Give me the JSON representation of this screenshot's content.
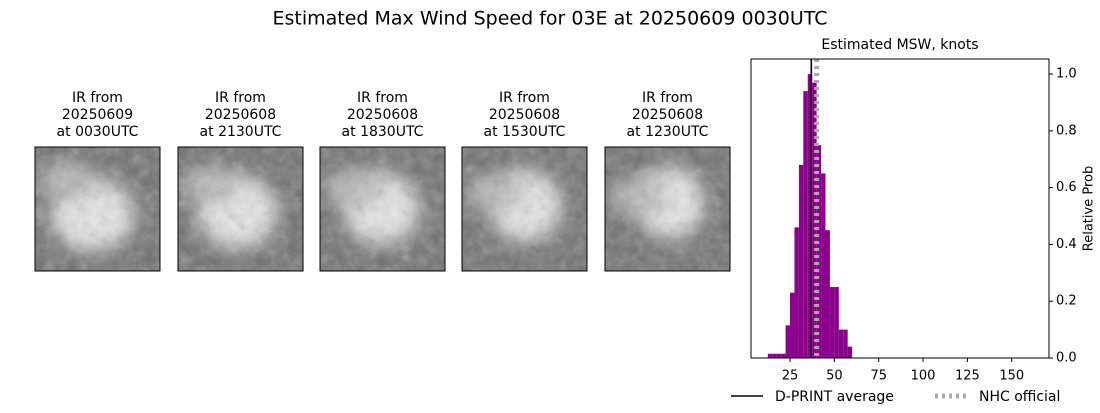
{
  "title": "Estimated Max Wind Speed for 03E at 20250609 0030UTC",
  "panels": [
    {
      "lines": [
        "IR from",
        "20250609",
        "at 0030UTC"
      ]
    },
    {
      "lines": [
        "IR from",
        "20250608",
        "at 2130UTC"
      ]
    },
    {
      "lines": [
        "IR from",
        "20250608",
        "at 1830UTC"
      ]
    },
    {
      "lines": [
        "IR from",
        "20250608",
        "at 1530UTC"
      ]
    },
    {
      "lines": [
        "IR from",
        "20250608",
        "at 1230UTC"
      ]
    }
  ],
  "chart_data": {
    "type": "histogram",
    "title": "Estimated MSW, knots",
    "bins": [
      12.5,
      15,
      17.5,
      20,
      22.5,
      25,
      27.5,
      30,
      32.5,
      35,
      37.5,
      40,
      42.5,
      45,
      47.5,
      50,
      52.5,
      55,
      57.5,
      60
    ],
    "values": [
      0.015,
      0.015,
      0.015,
      0.015,
      0.115,
      0.23,
      0.46,
      0.68,
      0.94,
      1.0,
      0.97,
      0.75,
      0.65,
      0.45,
      0.25,
      0.25,
      0.1,
      0.1,
      0.04
    ],
    "color": "#8b008b",
    "xlim": [
      3,
      171
    ],
    "xticks": [
      25,
      50,
      75,
      100,
      125,
      150
    ],
    "ylim": [
      0,
      1.053
    ],
    "yticks": [
      {
        "value": 0,
        "label": "0.0"
      },
      0.2,
      0.4,
      0.6,
      0.8,
      {
        "value": 1,
        "label": "1.0"
      }
    ],
    "y_label": "Relative Prob",
    "y_axis_side": "right",
    "reference_lines": [
      {
        "name": "D-PRINT average",
        "value": 37,
        "color": "#000000",
        "style": "solid"
      },
      {
        "name": "NHC official",
        "value": 40,
        "color": "#aaaaaa",
        "style": "dotted"
      }
    ],
    "legend": "bottom"
  }
}
